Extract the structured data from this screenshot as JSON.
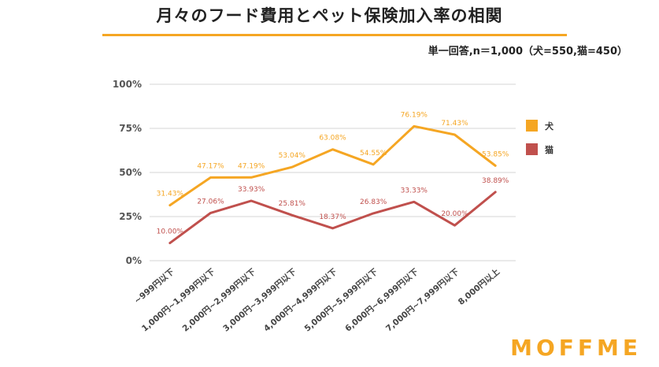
{
  "header": {
    "title": "月々のフード費用とペット保険加入率の相関",
    "subtitle": "単一回答,n＝1,000（犬=550,猫=450）"
  },
  "brand": {
    "logo_text": "MOFFME"
  },
  "colors": {
    "dog": "#f5a623",
    "cat": "#c0504d",
    "accent": "#f5a623"
  },
  "chart_data": {
    "type": "line",
    "title": "月々のフード費用とペット保険加入率の相関",
    "xlabel": "",
    "ylabel": "",
    "ylim": [
      0,
      100
    ],
    "yticks": [
      0,
      25,
      50,
      75,
      100
    ],
    "ytick_labels": [
      "0%",
      "25%",
      "50%",
      "75%",
      "100%"
    ],
    "grid": true,
    "legend_position": "right",
    "categories": [
      "~999円以下",
      "1,000円~1,999円以下",
      "2,000円~2,999円以下",
      "3,000円~3,999円以下",
      "4,000円~4,999円以下",
      "5,000円~5,999円以下",
      "6,000円~6,999円以下",
      "7,000円~7,999円以下",
      "8,000円以上"
    ],
    "series": [
      {
        "name": "犬",
        "color": "#f5a623",
        "values": [
          31.43,
          47.17,
          47.19,
          53.04,
          63.08,
          54.55,
          76.19,
          71.43,
          53.85
        ],
        "labels": [
          "31.43%",
          "47.17%",
          "47.19%",
          "53.04%",
          "63.08%",
          "54.55%",
          "76.19%",
          "71.43%",
          "53.85%"
        ]
      },
      {
        "name": "猫",
        "color": "#c0504d",
        "values": [
          10.0,
          27.06,
          33.93,
          25.81,
          18.37,
          26.83,
          33.33,
          20.0,
          38.89
        ],
        "labels": [
          "10.00%",
          "27.06%",
          "33.93%",
          "25.81%",
          "18.37%",
          "26.83%",
          "33.33%",
          "20.00%",
          "38.89%"
        ]
      }
    ]
  }
}
